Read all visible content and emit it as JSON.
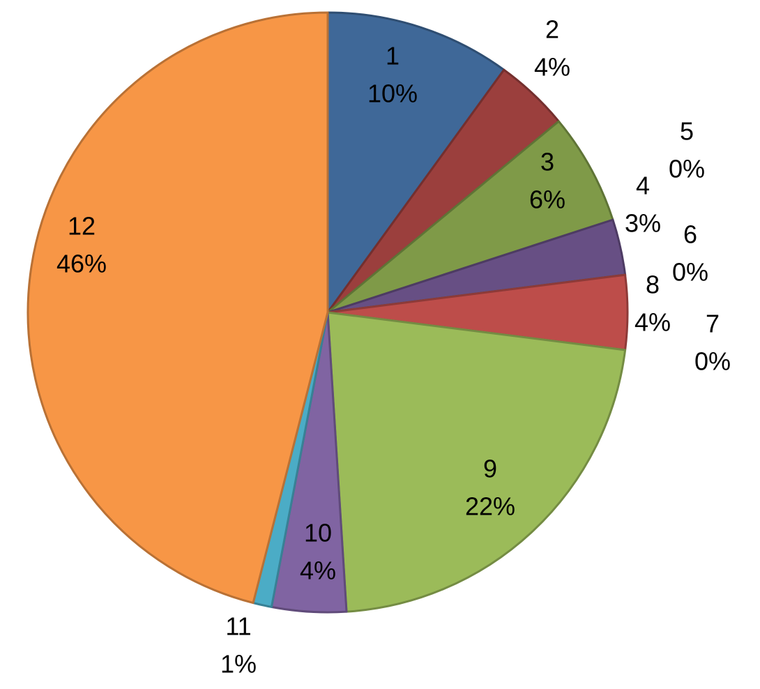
{
  "chart_data": {
    "type": "pie",
    "categories": [
      "1",
      "2",
      "3",
      "4",
      "5",
      "6",
      "7",
      "8",
      "9",
      "10",
      "11",
      "12"
    ],
    "values": [
      10,
      4,
      6,
      3,
      0,
      0,
      0,
      4,
      22,
      4,
      1,
      46
    ],
    "value_labels": [
      "10%",
      "4%",
      "6%",
      "3%",
      "0%",
      "0%",
      "0%",
      "4%",
      "22%",
      "4%",
      "1%",
      "46%"
    ],
    "colors": [
      "#3f6898",
      "#9b3f3d",
      "#7f9a48",
      "#674f84",
      "#4bacc6",
      "#f79646",
      "#2c4d75",
      "#bd4d4a",
      "#9bbb59",
      "#8064a2",
      "#4bacc6",
      "#f79646"
    ]
  }
}
